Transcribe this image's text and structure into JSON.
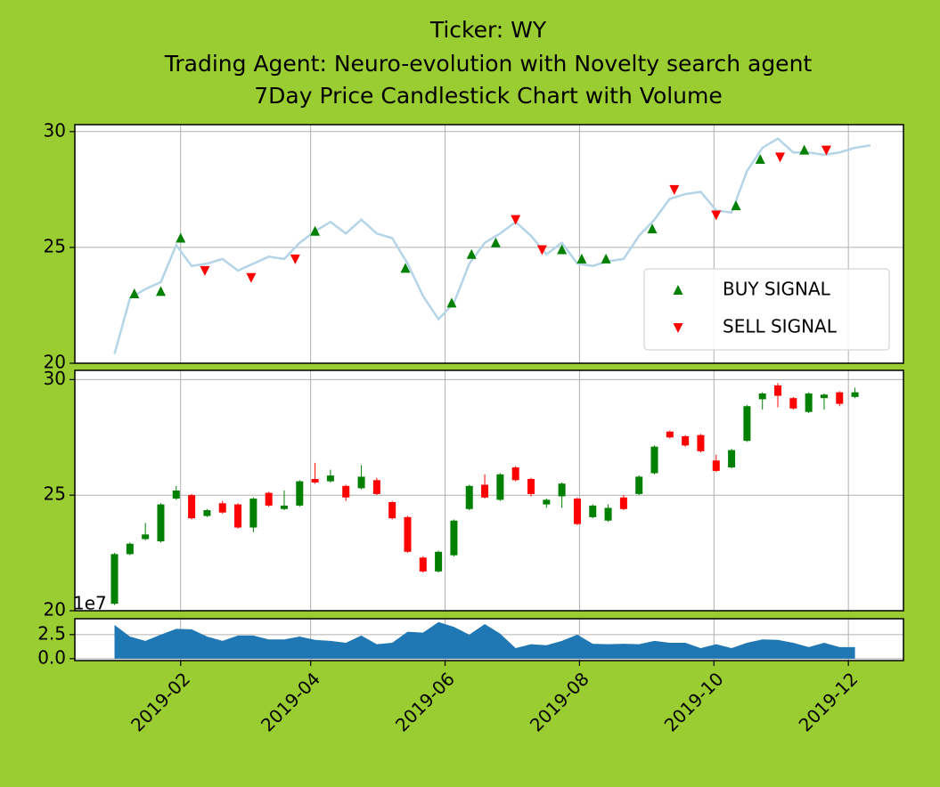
{
  "chart_data": [
    {
      "type": "line",
      "title": "Ticker: WY",
      "subtitle": [
        "Trading Agent: Neuro-evolution with Novelty search agent",
        "7Day Price Candlestick Chart with Volume"
      ],
      "line_color": "#b4d4e8",
      "x": [
        "2019-01-02",
        "2019-01-09",
        "2019-01-16",
        "2019-01-23",
        "2019-01-30",
        "2019-02-06",
        "2019-02-13",
        "2019-02-20",
        "2019-02-27",
        "2019-03-06",
        "2019-03-13",
        "2019-03-20",
        "2019-03-27",
        "2019-04-03",
        "2019-04-10",
        "2019-04-17",
        "2019-04-24",
        "2019-05-01",
        "2019-05-08",
        "2019-05-15",
        "2019-05-22",
        "2019-05-29",
        "2019-06-05",
        "2019-06-12",
        "2019-06-19",
        "2019-06-26",
        "2019-07-03",
        "2019-07-10",
        "2019-07-17",
        "2019-07-24",
        "2019-07-31",
        "2019-08-07",
        "2019-08-14",
        "2019-08-21",
        "2019-08-28",
        "2019-09-04",
        "2019-09-11",
        "2019-09-18",
        "2019-09-25",
        "2019-10-02",
        "2019-10-09",
        "2019-10-16",
        "2019-10-23",
        "2019-10-30",
        "2019-11-06",
        "2019-11-13",
        "2019-11-20",
        "2019-11-27",
        "2019-12-04",
        "2019-12-11"
      ],
      "values": [
        20.4,
        22.8,
        23.2,
        23.5,
        25.1,
        24.2,
        24.3,
        24.5,
        24.0,
        24.3,
        24.6,
        24.5,
        25.2,
        25.7,
        26.1,
        25.6,
        26.2,
        25.6,
        25.4,
        24.3,
        22.9,
        21.9,
        22.6,
        24.3,
        25.2,
        25.6,
        26.1,
        25.5,
        24.7,
        25.2,
        24.3,
        24.2,
        24.4,
        24.5,
        25.5,
        26.2,
        27.1,
        27.3,
        27.4,
        26.6,
        26.5,
        28.3,
        29.3,
        29.7,
        29.1,
        29.1,
        29.0,
        29.1,
        29.3,
        29.4
      ],
      "signals": [
        {
          "name": "BUY SIGNAL",
          "color": "#008000",
          "marker": "up",
          "x": [
            "2019-01-11",
            "2019-01-23",
            "2019-02-01",
            "2019-04-03",
            "2019-05-14",
            "2019-06-04",
            "2019-06-13",
            "2019-06-24",
            "2019-07-24",
            "2019-08-02",
            "2019-08-13",
            "2019-09-03",
            "2019-10-11",
            "2019-10-22",
            "2019-11-11"
          ],
          "values": [
            23.0,
            23.1,
            25.4,
            25.7,
            24.1,
            22.6,
            24.7,
            25.2,
            24.9,
            24.5,
            24.5,
            25.8,
            26.8,
            28.8,
            29.2
          ]
        },
        {
          "name": "SELL SIGNAL",
          "color": "#ff0000",
          "marker": "down",
          "x": [
            "2019-02-12",
            "2019-03-05",
            "2019-03-25",
            "2019-07-03",
            "2019-07-15",
            "2019-09-13",
            "2019-10-02",
            "2019-10-31",
            "2019-11-21"
          ],
          "values": [
            24.0,
            23.7,
            24.5,
            26.2,
            24.9,
            27.5,
            26.4,
            28.9,
            29.2
          ]
        }
      ],
      "legend": "lower right",
      "ylim": [
        20,
        30.3
      ],
      "yticks": [
        20,
        25,
        30
      ],
      "grid": true
    },
    {
      "type": "candlestick",
      "up_color": "#008000",
      "down_color": "#ff0000",
      "x": [
        "2019-01-02",
        "2019-01-09",
        "2019-01-16",
        "2019-01-23",
        "2019-01-30",
        "2019-02-06",
        "2019-02-13",
        "2019-02-20",
        "2019-02-27",
        "2019-03-06",
        "2019-03-13",
        "2019-03-20",
        "2019-03-27",
        "2019-04-03",
        "2019-04-10",
        "2019-04-17",
        "2019-04-24",
        "2019-05-01",
        "2019-05-08",
        "2019-05-15",
        "2019-05-22",
        "2019-05-29",
        "2019-06-05",
        "2019-06-12",
        "2019-06-19",
        "2019-06-26",
        "2019-07-03",
        "2019-07-10",
        "2019-07-17",
        "2019-07-24",
        "2019-07-31",
        "2019-08-07",
        "2019-08-14",
        "2019-08-21",
        "2019-08-28",
        "2019-09-04",
        "2019-09-11",
        "2019-09-18",
        "2019-09-25",
        "2019-10-02",
        "2019-10-09",
        "2019-10-16",
        "2019-10-23",
        "2019-10-30",
        "2019-11-06",
        "2019-11-13",
        "2019-11-20",
        "2019-11-27",
        "2019-12-04"
      ],
      "open": [
        20.3,
        22.45,
        23.1,
        23.0,
        24.85,
        25.0,
        24.1,
        24.65,
        24.6,
        23.6,
        25.1,
        24.4,
        24.55,
        25.7,
        25.6,
        25.4,
        25.3,
        25.65,
        24.7,
        24.05,
        22.3,
        21.7,
        22.4,
        24.4,
        25.45,
        24.8,
        26.2,
        25.7,
        24.6,
        24.95,
        24.85,
        24.05,
        23.9,
        24.9,
        25.05,
        25.95,
        27.75,
        27.55,
        27.6,
        26.5,
        26.2,
        27.35,
        29.15,
        29.75,
        29.2,
        28.6,
        29.2,
        29.45,
        29.25
      ],
      "high": [
        22.5,
        22.95,
        23.8,
        24.65,
        25.4,
        25.05,
        24.4,
        24.75,
        24.65,
        24.9,
        25.15,
        25.2,
        25.65,
        26.4,
        26.1,
        25.45,
        26.3,
        25.75,
        24.75,
        24.1,
        22.35,
        22.6,
        23.95,
        25.45,
        25.9,
        25.95,
        26.25,
        25.75,
        24.85,
        25.55,
        24.9,
        24.6,
        24.6,
        25.0,
        25.85,
        27.15,
        27.8,
        27.6,
        27.65,
        26.75,
        27.0,
        28.9,
        29.45,
        29.85,
        29.25,
        29.45,
        29.4,
        29.5,
        29.65
      ],
      "low": [
        20.25,
        22.4,
        23.05,
        22.95,
        24.8,
        23.95,
        24.05,
        24.2,
        23.55,
        23.4,
        24.5,
        24.35,
        24.5,
        25.5,
        25.55,
        24.75,
        25.25,
        25.0,
        23.95,
        22.5,
        21.65,
        21.65,
        22.35,
        24.35,
        24.85,
        24.75,
        25.6,
        24.95,
        24.45,
        24.45,
        23.7,
        24.0,
        23.85,
        24.35,
        25.0,
        25.9,
        27.45,
        27.1,
        26.85,
        26.0,
        26.15,
        27.3,
        28.7,
        28.8,
        28.7,
        28.55,
        28.7,
        28.85,
        29.2
      ],
      "close": [
        22.45,
        22.9,
        23.3,
        24.6,
        25.2,
        24.0,
        24.35,
        24.25,
        23.6,
        24.85,
        24.55,
        24.55,
        25.6,
        25.55,
        25.85,
        24.9,
        25.8,
        25.05,
        24.0,
        22.55,
        21.7,
        22.55,
        23.9,
        25.4,
        24.9,
        25.9,
        25.65,
        25.05,
        24.8,
        25.5,
        23.75,
        24.55,
        24.45,
        24.4,
        25.8,
        27.1,
        27.5,
        27.15,
        26.9,
        26.05,
        26.95,
        28.85,
        29.4,
        29.3,
        28.75,
        29.4,
        29.35,
        28.95,
        29.45
      ],
      "ylim": [
        20,
        30.4
      ],
      "yticks": [
        20,
        25,
        30
      ],
      "grid": true
    },
    {
      "type": "area",
      "color": "#1f77b4",
      "offset_label": "1e7",
      "x": [
        "2019-01-02",
        "2019-01-09",
        "2019-01-16",
        "2019-01-23",
        "2019-01-30",
        "2019-02-06",
        "2019-02-13",
        "2019-02-20",
        "2019-02-27",
        "2019-03-06",
        "2019-03-13",
        "2019-03-20",
        "2019-03-27",
        "2019-04-03",
        "2019-04-10",
        "2019-04-17",
        "2019-04-24",
        "2019-05-01",
        "2019-05-08",
        "2019-05-15",
        "2019-05-22",
        "2019-05-29",
        "2019-06-05",
        "2019-06-12",
        "2019-06-19",
        "2019-06-26",
        "2019-07-03",
        "2019-07-10",
        "2019-07-17",
        "2019-07-24",
        "2019-07-31",
        "2019-08-07",
        "2019-08-14",
        "2019-08-21",
        "2019-08-28",
        "2019-09-04",
        "2019-09-11",
        "2019-09-18",
        "2019-09-25",
        "2019-10-02",
        "2019-10-09",
        "2019-10-16",
        "2019-10-23",
        "2019-10-30",
        "2019-11-06",
        "2019-11-13",
        "2019-11-20",
        "2019-11-27",
        "2019-12-04"
      ],
      "values": [
        3.5,
        2.3,
        1.85,
        2.5,
        3.1,
        3.05,
        2.3,
        1.85,
        2.4,
        2.4,
        2.0,
        2.0,
        2.3,
        1.95,
        1.85,
        1.65,
        2.4,
        1.5,
        1.65,
        2.8,
        2.7,
        3.8,
        3.3,
        2.5,
        3.6,
        2.6,
        1.1,
        1.5,
        1.4,
        1.85,
        2.5,
        1.55,
        1.5,
        1.55,
        1.5,
        1.85,
        1.65,
        1.65,
        1.1,
        1.5,
        1.1,
        1.65,
        2.0,
        1.95,
        1.65,
        1.2,
        1.65,
        1.2,
        1.2
      ],
      "ylim": [
        -0.2,
        4.15
      ],
      "yticks": [
        {
          "value": 0,
          "label": "0.0"
        },
        2.5
      ],
      "grid": true,
      "xlim": [
        "2018-12-15",
        "2019-12-26"
      ],
      "xticks": [
        {
          "value": "2019-02-01",
          "label": "2019-02"
        },
        {
          "value": "2019-04-01",
          "label": "2019-04"
        },
        {
          "value": "2019-06-01",
          "label": "2019-06"
        },
        {
          "value": "2019-08-01",
          "label": "2019-08"
        },
        {
          "value": "2019-10-01",
          "label": "2019-10"
        },
        {
          "value": "2019-12-01",
          "label": "2019-12"
        }
      ]
    }
  ]
}
